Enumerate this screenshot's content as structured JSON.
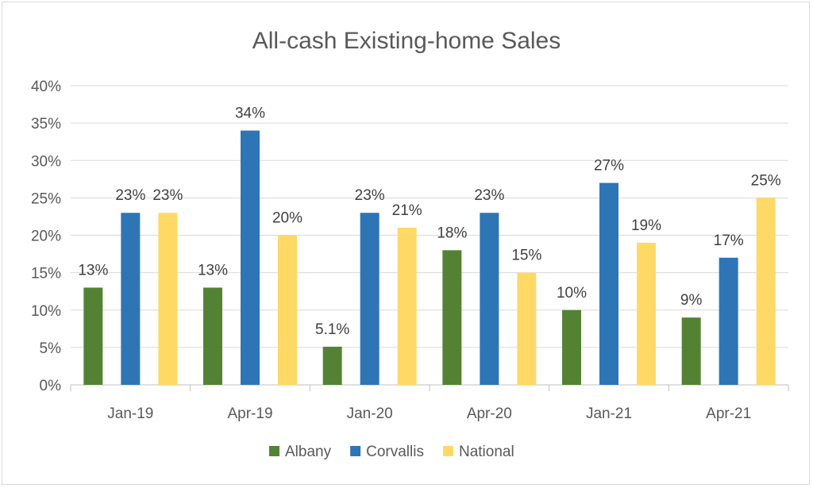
{
  "chart_data": {
    "type": "bar",
    "title": "All-cash Existing-home Sales",
    "categories": [
      "Jan-19",
      "Apr-19",
      "Jan-20",
      "Apr-20",
      "Jan-21",
      "Apr-21"
    ],
    "series": [
      {
        "name": "Albany",
        "color": "#548235",
        "values": [
          13,
          13,
          5.1,
          18,
          10,
          9
        ],
        "labels": [
          "13%",
          "13%",
          "5.1%",
          "18%",
          "10%",
          "9%"
        ]
      },
      {
        "name": "Corvallis",
        "color": "#2e75b6",
        "values": [
          23,
          34,
          23,
          23,
          27,
          17
        ],
        "labels": [
          "23%",
          "34%",
          "23%",
          "23%",
          "27%",
          "17%"
        ]
      },
      {
        "name": "National",
        "color": "#ffd966",
        "values": [
          23,
          20,
          21,
          15,
          19,
          25
        ],
        "labels": [
          "23%",
          "20%",
          "21%",
          "15%",
          "19%",
          "25%"
        ]
      }
    ],
    "ylim": [
      0,
      40
    ],
    "yticks": [
      "0%",
      "5%",
      "10%",
      "15%",
      "20%",
      "25%",
      "30%",
      "35%",
      "40%"
    ],
    "grid": true,
    "legend_position": "bottom"
  }
}
